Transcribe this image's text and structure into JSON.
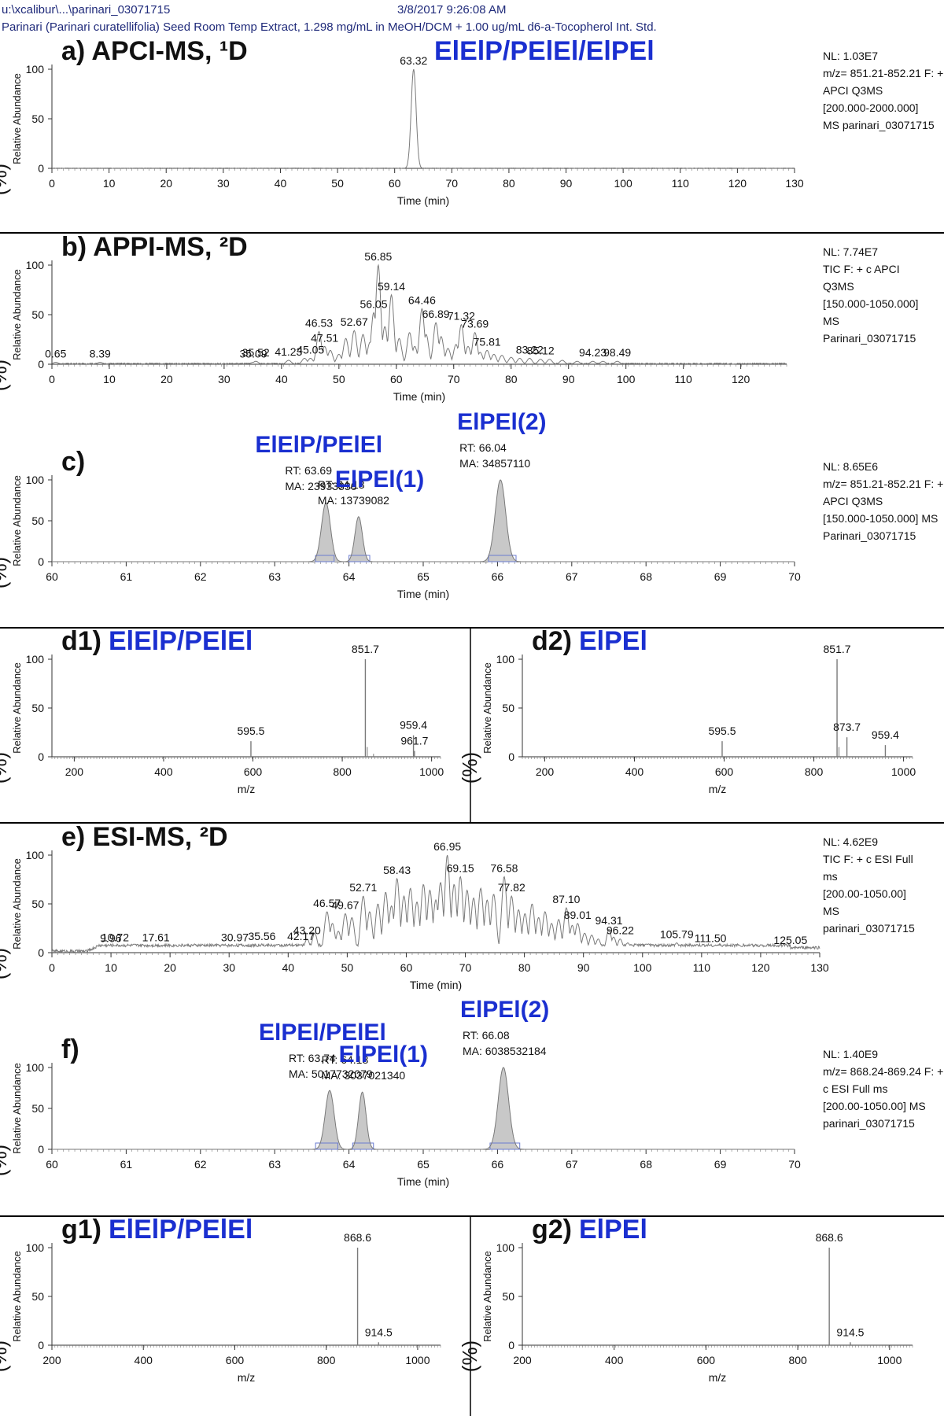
{
  "header": {
    "path": "u:\\xcalibur\\...\\parinari_03071715",
    "datetime": "3/8/2017 9:26:08 AM",
    "sample": "Parinari (Parinari curatellifolia) Seed Room Temp Extract, 1.298 mg/mL in MeOH/DCM + 1.00 ug/mL d6-a-Tocopherol Int. Std."
  },
  "colors": {
    "trace": "#7a7a7a",
    "fill": "#c8c8c8",
    "annotation_blue": "#1a2fd0",
    "label": "#111111",
    "divider": "#000000"
  },
  "chart_data": [
    {
      "id": "a",
      "type": "line",
      "kind": "chromatogram",
      "panel_label": "a) APCI-MS, ¹D",
      "highlight": "ElElP/PElEl/ElPEl",
      "xlabel": "Time (min)",
      "ylabel": "Relative Abundance",
      "ylabel_unit": "(%)",
      "xlim": [
        0,
        130
      ],
      "ylim": [
        0,
        100
      ],
      "xticks": [
        0,
        10,
        20,
        30,
        40,
        50,
        60,
        70,
        80,
        90,
        100,
        110,
        120,
        130
      ],
      "yticks": [
        0,
        50,
        100
      ],
      "info": [
        "NL: 1.03E7",
        "m/z= 851.21-852.21 F: + c",
        "APCI Q3MS",
        "[200.000-2000.000]",
        "MS parinari_03071715"
      ],
      "peaks": [
        {
          "x": 63.32,
          "y": 100,
          "label": "63.32"
        }
      ],
      "baseline_noise": 0.4
    },
    {
      "id": "b",
      "type": "line",
      "kind": "chromatogram",
      "panel_label": "b) APPI-MS, ²D",
      "xlabel": "Time (min)",
      "ylabel": "Relative Abundance",
      "ylabel_unit": "(%)",
      "xlim": [
        0,
        128
      ],
      "ylim": [
        0,
        100
      ],
      "xticks": [
        0,
        10,
        20,
        30,
        40,
        50,
        60,
        70,
        80,
        90,
        100,
        110,
        120
      ],
      "yticks": [
        0,
        50,
        100
      ],
      "info": [
        "NL: 7.74E7",
        "TIC F: + c APCI",
        "Q3MS",
        "[150.000-1050.000]",
        "MS",
        "Parinari_03071715"
      ],
      "peaks": [
        {
          "x": 0.65,
          "y": 2,
          "label": "0.65"
        },
        {
          "x": 8.39,
          "y": 2,
          "label": "8.39"
        },
        {
          "x": 35.09,
          "y": 2,
          "label": "35.09"
        },
        {
          "x": 35.52,
          "y": 3,
          "label": "35.52"
        },
        {
          "x": 41.23,
          "y": 4,
          "label": "41.23"
        },
        {
          "x": 45.05,
          "y": 6,
          "label": "45.05"
        },
        {
          "x": 46.53,
          "y": 33,
          "label": "46.53"
        },
        {
          "x": 47.51,
          "y": 18,
          "label": "47.51"
        },
        {
          "x": 52.67,
          "y": 34,
          "label": "52.67"
        },
        {
          "x": 56.05,
          "y": 52,
          "label": "56.05"
        },
        {
          "x": 56.85,
          "y": 100,
          "label": "56.85"
        },
        {
          "x": 59.14,
          "y": 70,
          "label": "59.14"
        },
        {
          "x": 64.46,
          "y": 56,
          "label": "64.46"
        },
        {
          "x": 66.89,
          "y": 42,
          "label": "66.89"
        },
        {
          "x": 71.32,
          "y": 40,
          "label": "71.32"
        },
        {
          "x": 73.69,
          "y": 32,
          "label": "73.69"
        },
        {
          "x": 75.81,
          "y": 14,
          "label": "75.81"
        },
        {
          "x": 83.22,
          "y": 6,
          "label": "83.22"
        },
        {
          "x": 85.12,
          "y": 5,
          "label": "85.12"
        },
        {
          "x": 94.23,
          "y": 3,
          "label": "94.23"
        },
        {
          "x": 98.49,
          "y": 3,
          "label": "98.49"
        }
      ],
      "minor_peaks": [
        [
          44,
          6
        ],
        [
          48.5,
          14
        ],
        [
          50,
          10
        ],
        [
          51.2,
          26
        ],
        [
          54.2,
          30
        ],
        [
          55.4,
          22
        ],
        [
          58,
          38
        ],
        [
          60.5,
          26
        ],
        [
          62.3,
          32
        ],
        [
          63.2,
          18
        ],
        [
          65.2,
          30
        ],
        [
          67.8,
          28
        ],
        [
          69,
          16
        ],
        [
          70.4,
          20
        ],
        [
          72.5,
          18
        ],
        [
          74.6,
          12
        ],
        [
          77,
          10
        ],
        [
          78.4,
          9
        ],
        [
          80,
          7
        ],
        [
          81.5,
          6
        ],
        [
          86.7,
          5
        ],
        [
          88.9,
          4
        ],
        [
          91.5,
          3
        ],
        [
          96,
          3
        ]
      ],
      "baseline_noise": 1.2
    },
    {
      "id": "c",
      "type": "line",
      "kind": "chromatogram",
      "panel_label": "c)",
      "xlabel": "Time (min)",
      "ylabel": "Relative Abundance",
      "ylabel_unit": "(%)",
      "xlim": [
        60,
        70
      ],
      "ylim": [
        0,
        100
      ],
      "xticks": [
        60,
        61,
        62,
        63,
        64,
        65,
        66,
        67,
        68,
        69,
        70
      ],
      "yticks": [
        0,
        50,
        100
      ],
      "info": [
        "NL: 8.65E6",
        "m/z= 851.21-852.21 F: + c",
        "APCI Q3MS",
        "[150.000-1050.000]  MS",
        "Parinari_03071715"
      ],
      "peaks": [
        {
          "x": 63.69,
          "y": 72,
          "width": 0.06,
          "rt": "RT: 63.69",
          "ma": "MA: 23933336",
          "name": "ElElP/PElEl"
        },
        {
          "x": 64.13,
          "y": 55,
          "width": 0.05,
          "rt": "RT: 64.13",
          "ma": "MA: 13739082",
          "name": "ElPEl(1)"
        },
        {
          "x": 66.04,
          "y": 100,
          "width": 0.07,
          "rt": "RT: 66.04",
          "ma": "MA: 34857110",
          "name": "ElPEl(2)"
        }
      ],
      "integration_boxes": [
        [
          63.55,
          63.8
        ],
        [
          64.0,
          64.28
        ],
        [
          65.88,
          66.25
        ]
      ],
      "baseline_noise": 0
    },
    {
      "id": "d1",
      "type": "bar",
      "kind": "spectrum",
      "panel_label": "d1)",
      "highlight": "ElElP/PElEl",
      "xlabel": "m/z",
      "ylabel": "Relative Abundance",
      "ylabel_unit": "(%)",
      "xlim": [
        150,
        1020
      ],
      "ylim": [
        0,
        100
      ],
      "xticks": [
        200,
        400,
        600,
        800,
        1000
      ],
      "yticks": [
        0,
        50,
        100
      ],
      "peaks": [
        {
          "x": 595.5,
          "y": 16,
          "label": "595.5"
        },
        {
          "x": 851.7,
          "y": 100,
          "label": "851.7"
        },
        {
          "x": 959.4,
          "y": 22,
          "label": "959.4"
        },
        {
          "x": 961.7,
          "y": 6,
          "label": "961.7"
        }
      ],
      "minor_peaks": [
        [
          856,
          10
        ],
        [
          870,
          3
        ]
      ]
    },
    {
      "id": "d2",
      "type": "bar",
      "kind": "spectrum",
      "panel_label": "d2)",
      "highlight": "ElPEl",
      "xlabel": "m/z",
      "ylabel": "Relative Abundance",
      "ylabel_unit": "(%)",
      "xlim": [
        150,
        1020
      ],
      "ylim": [
        0,
        100
      ],
      "xticks": [
        200,
        400,
        600,
        800,
        1000
      ],
      "yticks": [
        0,
        50,
        100
      ],
      "peaks": [
        {
          "x": 595.5,
          "y": 16,
          "label": "595.5"
        },
        {
          "x": 851.7,
          "y": 100,
          "label": "851.7"
        },
        {
          "x": 873.7,
          "y": 20,
          "label": "873.7"
        },
        {
          "x": 959.4,
          "y": 12,
          "label": "959.4"
        }
      ],
      "minor_peaks": [
        [
          856,
          10
        ]
      ]
    },
    {
      "id": "e",
      "type": "line",
      "kind": "chromatogram",
      "panel_label": "e) ESI-MS, ²D",
      "xlabel": "Time (min)",
      "ylabel": "Relative Abundance",
      "ylabel_unit": "(%)",
      "xlim": [
        0,
        130
      ],
      "ylim": [
        0,
        100
      ],
      "xticks": [
        0,
        10,
        20,
        30,
        40,
        50,
        60,
        70,
        80,
        90,
        100,
        110,
        120,
        130
      ],
      "yticks": [
        0,
        50,
        100
      ],
      "info": [
        "NL: 4.62E9",
        "TIC F: + c ESI Full",
        "ms",
        "[200.00-1050.00]",
        "MS",
        "parinari_03071715"
      ],
      "peaks": [
        {
          "x": 9.96,
          "y": 6,
          "label": "9.96"
        },
        {
          "x": 10.72,
          "y": 7,
          "label": "10.72"
        },
        {
          "x": 17.61,
          "y": 7,
          "label": "17.61"
        },
        {
          "x": 30.97,
          "y": 7,
          "label": "30.97"
        },
        {
          "x": 42.17,
          "y": 8,
          "label": "42.17"
        },
        {
          "x": 35.56,
          "y": 8,
          "label": "35.56"
        },
        {
          "x": 43.2,
          "y": 14,
          "label": "43.20"
        },
        {
          "x": 49.67,
          "y": 40,
          "label": "49.67"
        },
        {
          "x": 46.57,
          "y": 42,
          "label": "46.57"
        },
        {
          "x": 52.71,
          "y": 58,
          "label": "52.71"
        },
        {
          "x": 58.43,
          "y": 76,
          "label": "58.43"
        },
        {
          "x": 66.95,
          "y": 100,
          "label": "66.95"
        },
        {
          "x": 69.15,
          "y": 78,
          "label": "69.15"
        },
        {
          "x": 76.58,
          "y": 78,
          "label": "76.58"
        },
        {
          "x": 77.82,
          "y": 58,
          "label": "77.82"
        },
        {
          "x": 87.1,
          "y": 46,
          "label": "87.10"
        },
        {
          "x": 89.01,
          "y": 30,
          "label": "89.01"
        },
        {
          "x": 94.31,
          "y": 24,
          "label": "94.31"
        },
        {
          "x": 96.22,
          "y": 14,
          "label": "96.22"
        },
        {
          "x": 105.79,
          "y": 10,
          "label": "105.79"
        },
        {
          "x": 111.5,
          "y": 6,
          "label": "111.50"
        },
        {
          "x": 125.05,
          "y": 4,
          "label": "125.05"
        }
      ],
      "minor_peaks": [
        [
          44.5,
          20
        ],
        [
          47.5,
          30
        ],
        [
          48.5,
          22
        ],
        [
          50.8,
          36
        ],
        [
          53.8,
          42
        ],
        [
          55.2,
          50
        ],
        [
          56.5,
          62
        ],
        [
          57.5,
          48
        ],
        [
          59.6,
          58
        ],
        [
          60.7,
          66
        ],
        [
          61.8,
          52
        ],
        [
          62.9,
          70
        ],
        [
          64,
          64
        ],
        [
          65,
          54
        ],
        [
          65.8,
          72
        ],
        [
          68.1,
          70
        ],
        [
          70.3,
          64
        ],
        [
          71.4,
          56
        ],
        [
          72.6,
          66
        ],
        [
          73.7,
          54
        ],
        [
          74.8,
          60
        ],
        [
          79,
          44
        ],
        [
          80.1,
          40
        ],
        [
          81.3,
          50
        ],
        [
          82.4,
          36
        ],
        [
          83.5,
          42
        ],
        [
          84.6,
          30
        ],
        [
          85.8,
          34
        ],
        [
          88.1,
          28
        ],
        [
          90.2,
          20
        ],
        [
          91.4,
          18
        ],
        [
          92.5,
          14
        ],
        [
          95.1,
          16
        ],
        [
          97.5,
          10
        ],
        [
          99,
          8
        ],
        [
          101,
          9
        ],
        [
          103,
          7
        ],
        [
          108,
          6
        ],
        [
          115,
          5
        ],
        [
          120,
          4
        ]
      ],
      "baseline_noise": 3,
      "baseline_offset": 6
    },
    {
      "id": "f",
      "type": "line",
      "kind": "chromatogram",
      "panel_label": "f)",
      "xlabel": "Time (min)",
      "ylabel": "Relative Abundance",
      "ylabel_unit": "(%)",
      "xlim": [
        60,
        70
      ],
      "ylim": [
        0,
        100
      ],
      "xticks": [
        60,
        61,
        62,
        63,
        64,
        65,
        66,
        67,
        68,
        69,
        70
      ],
      "yticks": [
        0,
        50,
        100
      ],
      "info": [
        "NL: 1.40E9",
        "m/z= 868.24-869.24 F: +",
        "c ESI Full ms",
        "[200.00-1050.00]  MS",
        "parinari_03071715"
      ],
      "peaks": [
        {
          "x": 63.74,
          "y": 72,
          "width": 0.06,
          "rt": "RT: 63.74",
          "ma": "MA: 5017732079",
          "name": "ElPEl/PElEl"
        },
        {
          "x": 64.18,
          "y": 70,
          "width": 0.05,
          "rt": "RT: 64.18",
          "ma": "MA: 3037021340",
          "name": "ElPEl(1)"
        },
        {
          "x": 66.08,
          "y": 100,
          "width": 0.07,
          "rt": "RT: 66.08",
          "ma": "MA: 6038532184",
          "name": "ElPEl(2)"
        }
      ],
      "integration_boxes": [
        [
          63.55,
          63.85
        ],
        [
          64.05,
          64.33
        ],
        [
          65.9,
          66.3
        ]
      ],
      "baseline_noise": 0
    },
    {
      "id": "g1",
      "type": "bar",
      "kind": "spectrum",
      "panel_label": "g1)",
      "highlight": "ElElP/PElEl",
      "xlabel": "m/z",
      "ylabel": "Relative Abundance",
      "ylabel_unit": "(%)",
      "xlim": [
        200,
        1050
      ],
      "ylim": [
        0,
        100
      ],
      "xticks": [
        200,
        400,
        600,
        800,
        1000
      ],
      "yticks": [
        0,
        50,
        100
      ],
      "peaks": [
        {
          "x": 868.6,
          "y": 100,
          "label": "868.6"
        },
        {
          "x": 914.5,
          "y": 3,
          "label": "914.5"
        }
      ],
      "minor_peaks": []
    },
    {
      "id": "g2",
      "type": "bar",
      "kind": "spectrum",
      "panel_label": "g2)",
      "highlight": "ElPEl",
      "xlabel": "m/z",
      "ylabel": "Relative Abundance",
      "ylabel_unit": "(%)",
      "xlim": [
        200,
        1050
      ],
      "ylim": [
        0,
        100
      ],
      "xticks": [
        200,
        400,
        600,
        800,
        1000
      ],
      "yticks": [
        0,
        50,
        100
      ],
      "peaks": [
        {
          "x": 868.6,
          "y": 100,
          "label": "868.6"
        },
        {
          "x": 914.5,
          "y": 3,
          "label": "914.5"
        }
      ],
      "minor_peaks": []
    }
  ]
}
